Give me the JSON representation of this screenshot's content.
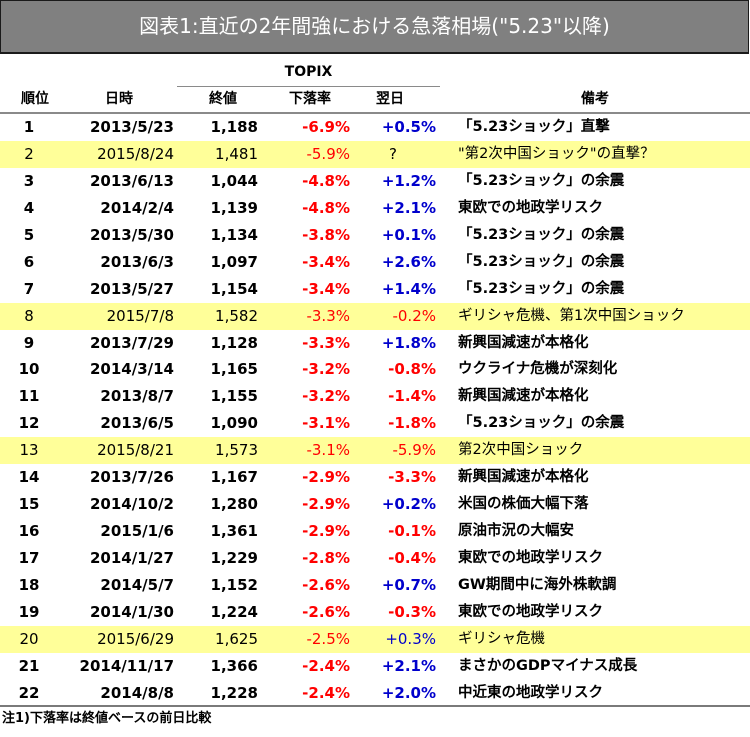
{
  "title": "図表1:直近の2年間強における急落相場(\"5.23\"以降)",
  "table": {
    "group_header": "TOPIX",
    "columns": {
      "rank": "順位",
      "date": "日時",
      "close": "終値",
      "drop": "下落率",
      "next_day": "翌日",
      "note": "備考"
    },
    "rows": [
      {
        "rank": "1",
        "date": "2013/5/23",
        "close": "1,188",
        "drop": "-6.9%",
        "next_day": "+0.5%",
        "next_sign": "pos",
        "note": "「5.23ショック」直撃",
        "highlight": false
      },
      {
        "rank": "2",
        "date": "2015/8/24",
        "close": "1,481",
        "drop": "-5.9%",
        "next_day": "?",
        "next_sign": "unk",
        "note": "\"第2次中国ショック\"の直撃？",
        "highlight": true
      },
      {
        "rank": "3",
        "date": "2013/6/13",
        "close": "1,044",
        "drop": "-4.8%",
        "next_day": "+1.2%",
        "next_sign": "pos",
        "note": "「5.23ショック」の余震",
        "highlight": false
      },
      {
        "rank": "4",
        "date": "2014/2/4",
        "close": "1,139",
        "drop": "-4.8%",
        "next_day": "+2.1%",
        "next_sign": "pos",
        "note": "東欧での地政学リスク",
        "highlight": false
      },
      {
        "rank": "5",
        "date": "2013/5/30",
        "close": "1,134",
        "drop": "-3.8%",
        "next_day": "+0.1%",
        "next_sign": "pos",
        "note": "「5.23ショック」の余震",
        "highlight": false
      },
      {
        "rank": "6",
        "date": "2013/6/3",
        "close": "1,097",
        "drop": "-3.4%",
        "next_day": "+2.6%",
        "next_sign": "pos",
        "note": "「5.23ショック」の余震",
        "highlight": false
      },
      {
        "rank": "7",
        "date": "2013/5/27",
        "close": "1,154",
        "drop": "-3.4%",
        "next_day": "+1.4%",
        "next_sign": "pos",
        "note": "「5.23ショック」の余震",
        "highlight": false
      },
      {
        "rank": "8",
        "date": "2015/7/8",
        "close": "1,582",
        "drop": "-3.3%",
        "next_day": "-0.2%",
        "next_sign": "neg",
        "note": "ギリシャ危機、第1次中国ショック",
        "highlight": true
      },
      {
        "rank": "9",
        "date": "2013/7/29",
        "close": "1,128",
        "drop": "-3.3%",
        "next_day": "+1.8%",
        "next_sign": "pos",
        "note": "新興国減速が本格化",
        "highlight": false
      },
      {
        "rank": "10",
        "date": "2014/3/14",
        "close": "1,165",
        "drop": "-3.2%",
        "next_day": "-0.8%",
        "next_sign": "neg",
        "note": "ウクライナ危機が深刻化",
        "highlight": false
      },
      {
        "rank": "11",
        "date": "2013/8/7",
        "close": "1,155",
        "drop": "-3.2%",
        "next_day": "-1.4%",
        "next_sign": "neg",
        "note": "新興国減速が本格化",
        "highlight": false
      },
      {
        "rank": "12",
        "date": "2013/6/5",
        "close": "1,090",
        "drop": "-3.1%",
        "next_day": "-1.8%",
        "next_sign": "neg",
        "note": "「5.23ショック」の余震",
        "highlight": false
      },
      {
        "rank": "13",
        "date": "2015/8/21",
        "close": "1,573",
        "drop": "-3.1%",
        "next_day": "-5.9%",
        "next_sign": "neg",
        "note": "第2次中国ショック",
        "highlight": true
      },
      {
        "rank": "14",
        "date": "2013/7/26",
        "close": "1,167",
        "drop": "-2.9%",
        "next_day": "-3.3%",
        "next_sign": "neg",
        "note": "新興国減速が本格化",
        "highlight": false
      },
      {
        "rank": "15",
        "date": "2014/10/2",
        "close": "1,280",
        "drop": "-2.9%",
        "next_day": "+0.2%",
        "next_sign": "pos",
        "note": "米国の株価大幅下落",
        "highlight": false
      },
      {
        "rank": "16",
        "date": "2015/1/6",
        "close": "1,361",
        "drop": "-2.9%",
        "next_day": "-0.1%",
        "next_sign": "neg",
        "note": "原油市況の大幅安",
        "highlight": false
      },
      {
        "rank": "17",
        "date": "2014/1/27",
        "close": "1,229",
        "drop": "-2.8%",
        "next_day": "-0.4%",
        "next_sign": "neg",
        "note": "東欧での地政学リスク",
        "highlight": false
      },
      {
        "rank": "18",
        "date": "2014/5/7",
        "close": "1,152",
        "drop": "-2.6%",
        "next_day": "+0.7%",
        "next_sign": "pos",
        "note": "GW期間中に海外株軟調",
        "highlight": false
      },
      {
        "rank": "19",
        "date": "2014/1/30",
        "close": "1,224",
        "drop": "-2.6%",
        "next_day": "-0.3%",
        "next_sign": "neg",
        "note": "東欧での地政学リスク",
        "highlight": false
      },
      {
        "rank": "20",
        "date": "2015/6/29",
        "close": "1,625",
        "drop": "-2.5%",
        "next_day": "+0.3%",
        "next_sign": "pos",
        "note": "ギリシャ危機",
        "highlight": true
      },
      {
        "rank": "21",
        "date": "2014/11/17",
        "close": "1,366",
        "drop": "-2.4%",
        "next_day": "+2.1%",
        "next_sign": "pos",
        "note": "まさかのGDPマイナス成長",
        "highlight": false
      },
      {
        "rank": "22",
        "date": "2014/8/8",
        "close": "1,228",
        "drop": "-2.4%",
        "next_day": "+2.0%",
        "next_sign": "pos",
        "note": "中近東の地政学リスク",
        "highlight": false
      }
    ]
  },
  "footnote": "注1)下落率は終値ベースの前日比較",
  "colors": {
    "title_bg": "#808080",
    "highlight_bg": "#ffff99",
    "negative": "#ff0000",
    "positive": "#0000cc"
  }
}
